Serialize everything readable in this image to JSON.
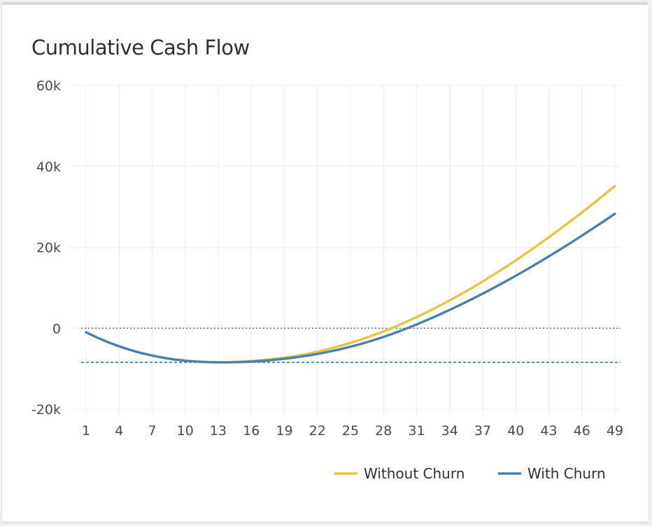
{
  "card": {
    "title": "Cumulative Cash Flow"
  },
  "chart_data": {
    "type": "line",
    "title": "Cumulative Cash Flow",
    "xlabel": "",
    "ylabel": "",
    "x": [
      1,
      2,
      3,
      4,
      5,
      6,
      7,
      8,
      9,
      10,
      11,
      12,
      13,
      14,
      15,
      16,
      17,
      18,
      19,
      20,
      21,
      22,
      23,
      24,
      25,
      26,
      27,
      28,
      29,
      30,
      31,
      32,
      33,
      34,
      35,
      36,
      37,
      38,
      39,
      40,
      41,
      42,
      43,
      44,
      45,
      46,
      47,
      48,
      49
    ],
    "x_tick_labels": [
      "1",
      "4",
      "7",
      "10",
      "13",
      "16",
      "19",
      "22",
      "25",
      "28",
      "31",
      "34",
      "37",
      "40",
      "43",
      "46",
      "49"
    ],
    "y_tick_values": [
      -20000,
      0,
      20000,
      40000,
      60000
    ],
    "y_tick_labels": [
      "-20k",
      "0",
      "20k",
      "40k",
      "60k"
    ],
    "ylim": [
      -20000,
      60000
    ],
    "grid": true,
    "legend_position": "bottom-right",
    "series": [
      {
        "name": "Without Churn",
        "color": "#e6c53f",
        "values": [
          -1000,
          -2300,
          -3450,
          -4470,
          -5350,
          -6120,
          -6750,
          -7280,
          -7690,
          -7990,
          -8200,
          -8320,
          -8370,
          -8350,
          -8260,
          -8100,
          -7880,
          -7600,
          -7270,
          -6860,
          -6380,
          -5810,
          -5150,
          -4420,
          -3620,
          -2750,
          -1800,
          -780,
          320,
          1490,
          2730,
          4040,
          5420,
          6860,
          8360,
          9930,
          11560,
          13240,
          14970,
          16760,
          18610,
          20510,
          22450,
          24450,
          26490,
          28580,
          30720,
          32900,
          35130
        ]
      },
      {
        "name": "With Churn",
        "color": "#4a7fb2",
        "values": [
          -1000,
          -2300,
          -3450,
          -4470,
          -5350,
          -6120,
          -6760,
          -7290,
          -7710,
          -8020,
          -8240,
          -8370,
          -8440,
          -8440,
          -8380,
          -8250,
          -8070,
          -7830,
          -7550,
          -7210,
          -6810,
          -6350,
          -5820,
          -5230,
          -4570,
          -3840,
          -3030,
          -2150,
          -1190,
          -160,
          930,
          2080,
          3280,
          4530,
          5820,
          7160,
          8540,
          9970,
          11440,
          12960,
          14510,
          16110,
          17740,
          19410,
          21110,
          22860,
          24640,
          26440,
          28280
        ]
      }
    ],
    "reference_lines": [
      {
        "value": 0,
        "color": "#6b6b6b",
        "style": "dotted"
      },
      {
        "value": -8370,
        "color": "#e6c53f",
        "style": "dashed"
      },
      {
        "value": -8440,
        "color": "#4a7fb2",
        "style": "dashed"
      }
    ]
  }
}
